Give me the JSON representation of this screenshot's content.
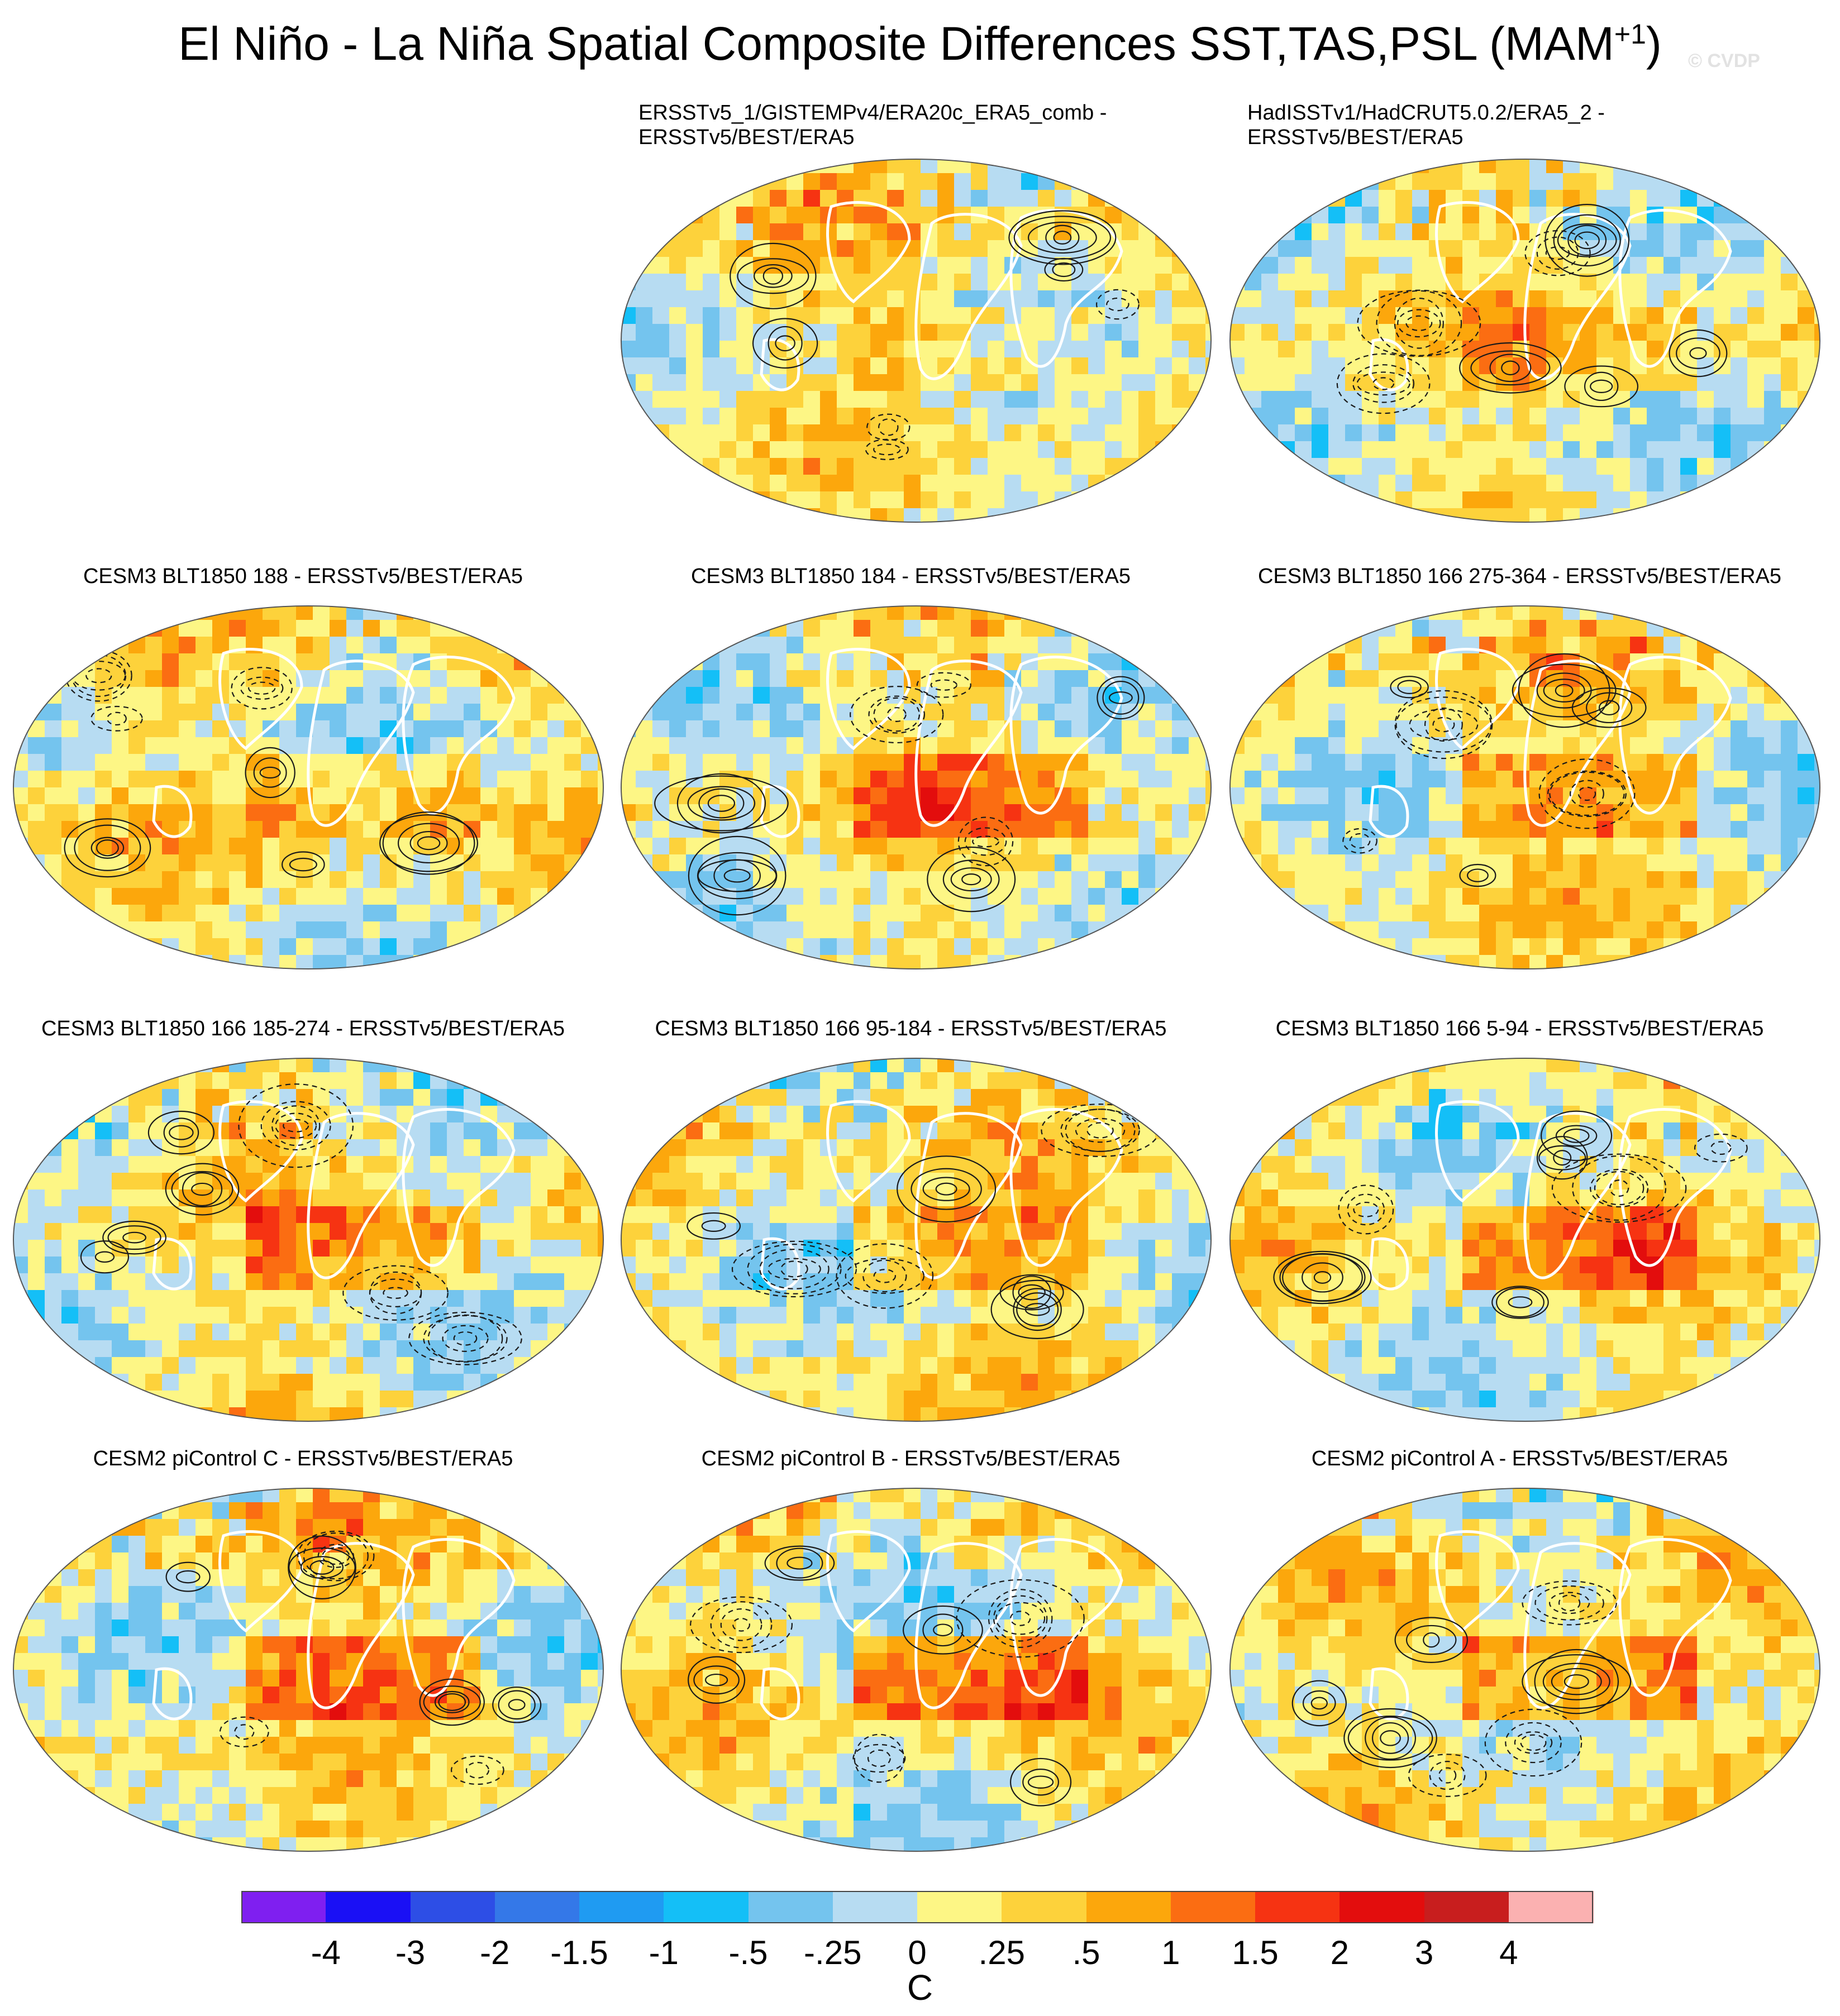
{
  "figure": {
    "title": "El Niño - La Niña Spatial Composite Differences SST,TAS,PSL (MAM",
    "title_superscript": "+1",
    "title_close": ")",
    "watermark": "© CVDP"
  },
  "panels": [
    {
      "line1": "ERSSTv5_1/GISTEMPv4/ERA20c_ERA5_comb -",
      "line2": "ERSSTv5/BEST/ERA5",
      "seed": 11,
      "tint": 0.3
    },
    {
      "line1": "HadISSTv1/HadCRUT5.0.2/ERA5_2 -",
      "line2": "ERSSTv5/BEST/ERA5",
      "seed": 23,
      "tint": 0.25
    },
    {
      "line1": "CESM3 BLT1850 188 - ERSSTv5/BEST/ERA5",
      "line2": "",
      "seed": 37,
      "tint": 0.45
    },
    {
      "line1": "CESM3 BLT1850 184 - ERSSTv5/BEST/ERA5",
      "line2": "",
      "seed": 41,
      "tint": 0.5
    },
    {
      "line1": "CESM3 BLT1850 166 275-364 - ERSSTv5/BEST/ERA5",
      "line2": "",
      "seed": 53,
      "tint": 0.55
    },
    {
      "line1": "CESM3 BLT1850 166 185-274 - ERSSTv5/BEST/ERA5",
      "line2": "",
      "seed": 67,
      "tint": 0.5
    },
    {
      "line1": "CESM3 BLT1850 166 95-184 - ERSSTv5/BEST/ERA5",
      "line2": "",
      "seed": 71,
      "tint": 0.45
    },
    {
      "line1": "CESM3 BLT1850 166 5-94 - ERSSTv5/BEST/ERA5",
      "line2": "",
      "seed": 83,
      "tint": 0.55
    },
    {
      "line1": "CESM2 piControl C - ERSSTv5/BEST/ERA5",
      "line2": "",
      "seed": 97,
      "tint": 0.75
    },
    {
      "line1": "CESM2 piControl B - ERSSTv5/BEST/ERA5",
      "line2": "",
      "seed": 101,
      "tint": 0.75
    },
    {
      "line1": "CESM2 piControl A - ERSSTv5/BEST/ERA5",
      "line2": "",
      "seed": 113,
      "tint": 0.8
    }
  ],
  "colorbar": {
    "units": "C",
    "labels": [
      "-4",
      "-3",
      "-2",
      "-1.5",
      "-1",
      "-.5",
      "-.25",
      "0",
      ".25",
      ".5",
      "1",
      "1.5",
      "2",
      "3",
      "4"
    ],
    "colors": [
      "#7f1ff0",
      "#1a10f5",
      "#2d4ee6",
      "#3478e8",
      "#1f9bf2",
      "#14bff7",
      "#74c4ee",
      "#b7dcf2",
      "#fdf685",
      "#fdd23b",
      "#fca70c",
      "#fb6d12",
      "#f63312",
      "#e30d0d",
      "#c81e1e",
      "#fbb1b1"
    ]
  }
}
